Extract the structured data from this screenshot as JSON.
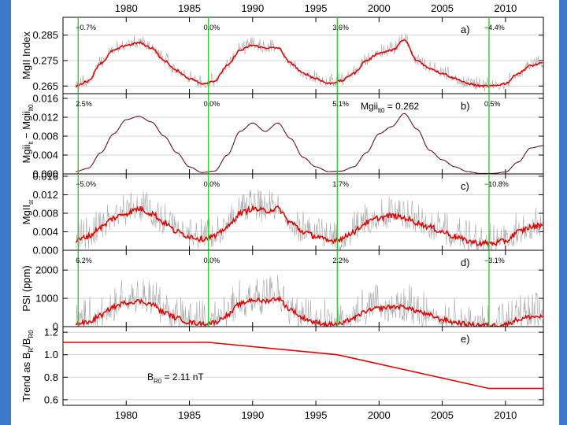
{
  "chart_data": {
    "type": "line",
    "x_axis": {
      "range": [
        1975,
        2013
      ],
      "ticks": [
        1980,
        1985,
        1990,
        1995,
        2000,
        2005,
        2010
      ]
    },
    "min_lines_years": [
      1976.2,
      1986.5,
      1996.7,
      2008.7
    ],
    "colors": {
      "frame_bg": "#3e78c8",
      "plot_bg": "#ffffff",
      "daily": "#a8a8a8",
      "smoothed": "#e00000",
      "model": "#111111",
      "minima": "#33cc33",
      "grid": "#c8c8c8"
    },
    "panels": [
      {
        "id": "a",
        "label": "a)",
        "ylabel_main": "MgII Index",
        "ylabel_sub": "",
        "ylabel_tail": "",
        "ylim": [
          0.262,
          0.292
        ],
        "yticks": [
          0.265,
          0.275,
          0.285
        ],
        "ytick_labels": [
          "0.265",
          "0.275",
          "0.285"
        ],
        "pct_labels": [
          "−0.7%",
          "0.0%",
          "3.6%",
          "−4.4%"
        ],
        "annotation": null,
        "series": [
          {
            "name": "daily",
            "x": [
              1976,
              1977,
              1978,
              1979,
              1980,
              1981,
              1982,
              1983,
              1984,
              1985,
              1986,
              1987,
              1988,
              1989,
              1990,
              1991,
              1992,
              1993,
              1994,
              1995,
              1996,
              1997,
              1998,
              1999,
              2000,
              2001,
              2002,
              2003,
              2004,
              2005,
              2006,
              2007,
              2008,
              2009,
              2010,
              2011,
              2012,
              2013
            ],
            "y": [
              0.265,
              0.267,
              0.274,
              0.279,
              0.281,
              0.282,
              0.28,
              0.275,
              0.271,
              0.268,
              0.266,
              0.267,
              0.273,
              0.279,
              0.281,
              0.28,
              0.28,
              0.274,
              0.27,
              0.268,
              0.266,
              0.267,
              0.27,
              0.275,
              0.278,
              0.279,
              0.283,
              0.275,
              0.272,
              0.27,
              0.268,
              0.266,
              0.265,
              0.265,
              0.266,
              0.27,
              0.273,
              0.274
            ],
            "amp": 0.0035
          },
          {
            "name": "smoothed",
            "x": [
              1976,
              1977,
              1978,
              1979,
              1980,
              1981,
              1982,
              1983,
              1984,
              1985,
              1986,
              1987,
              1988,
              1989,
              1990,
              1991,
              1992,
              1993,
              1994,
              1995,
              1996,
              1997,
              1998,
              1999,
              2000,
              2001,
              2002,
              2003,
              2004,
              2005,
              2006,
              2007,
              2008,
              2009,
              2010,
              2011,
              2012,
              2013
            ],
            "y": [
              0.265,
              0.267,
              0.274,
              0.279,
              0.281,
              0.282,
              0.28,
              0.275,
              0.271,
              0.268,
              0.266,
              0.267,
              0.273,
              0.279,
              0.281,
              0.28,
              0.28,
              0.274,
              0.27,
              0.268,
              0.266,
              0.267,
              0.27,
              0.275,
              0.278,
              0.279,
              0.283,
              0.275,
              0.272,
              0.27,
              0.268,
              0.266,
              0.265,
              0.265,
              0.266,
              0.27,
              0.273,
              0.274
            ],
            "amp": 0.0004
          }
        ]
      },
      {
        "id": "b",
        "label": "b)",
        "ylabel_main": "Mgii",
        "ylabel_sub": "lt",
        "ylabel_tail": " − Mgii",
        "ylabel_sub2": "lt0",
        "ylim": [
          0.0,
          0.017
        ],
        "yticks": [
          0.0,
          0.004,
          0.008,
          0.012,
          0.016
        ],
        "ytick_labels": [
          "0.000",
          "0.004",
          "0.008",
          "0.012",
          "0.016"
        ],
        "pct_labels": [
          "2.5%",
          "0.0%",
          "5.1%",
          "0.5%"
        ],
        "annotation": {
          "text_main": "Mgii",
          "text_sub": "lt0",
          "text_rest": " = 0.262"
        },
        "series": [
          {
            "name": "model",
            "x": [
              1976,
              1977,
              1978,
              1979,
              1980,
              1981,
              1982,
              1983,
              1984,
              1985,
              1986,
              1987,
              1988,
              1989,
              1990,
              1991,
              1992,
              1993,
              1994,
              1995,
              1996,
              1997,
              1998,
              1999,
              2000,
              2001,
              2002,
              2003,
              2004,
              2005,
              2006,
              2007,
              2008,
              2009,
              2010,
              2011,
              2012,
              2013
            ],
            "y": [
              0.0005,
              0.0012,
              0.0045,
              0.0085,
              0.0115,
              0.0122,
              0.011,
              0.008,
              0.0045,
              0.0015,
              0.0003,
              0.0006,
              0.004,
              0.009,
              0.0108,
              0.009,
              0.0108,
              0.0075,
              0.0035,
              0.0015,
              0.0005,
              0.0006,
              0.0015,
              0.0045,
              0.0085,
              0.01,
              0.0128,
              0.0095,
              0.005,
              0.003,
              0.0015,
              0.0005,
              0.0001,
              0.0001,
              0.0004,
              0.0025,
              0.0055,
              0.006
            ],
            "amp": 0.0
          }
        ]
      },
      {
        "id": "c",
        "label": "c)",
        "ylabel_main": "MgII",
        "ylabel_sub": "st",
        "ylabel_tail": "",
        "ylim": [
          0.0,
          0.0165
        ],
        "yticks": [
          0.0,
          0.004,
          0.008,
          0.012,
          0.016
        ],
        "ytick_labels": [
          "0.000",
          "0.004",
          "0.008",
          "0.012",
          "0.016"
        ],
        "pct_labels": [
          "−5.0%",
          "0.0%",
          "1.7%",
          "−10.8%"
        ],
        "annotation": null,
        "series": [
          {
            "name": "daily",
            "x": [
              1976,
              1977,
              1978,
              1979,
              1980,
              1981,
              1982,
              1983,
              1984,
              1985,
              1986,
              1987,
              1988,
              1989,
              1990,
              1991,
              1992,
              1993,
              1994,
              1995,
              1996,
              1997,
              1998,
              1999,
              2000,
              2001,
              2002,
              2003,
              2004,
              2005,
              2006,
              2007,
              2008,
              2009,
              2010,
              2011,
              2012,
              2013
            ],
            "y": [
              0.002,
              0.003,
              0.005,
              0.007,
              0.008,
              0.009,
              0.008,
              0.006,
              0.004,
              0.003,
              0.0025,
              0.003,
              0.005,
              0.008,
              0.009,
              0.0085,
              0.009,
              0.006,
              0.004,
              0.003,
              0.002,
              0.0025,
              0.004,
              0.006,
              0.007,
              0.0075,
              0.007,
              0.006,
              0.005,
              0.004,
              0.003,
              0.002,
              0.0015,
              0.0015,
              0.002,
              0.004,
              0.005,
              0.0055
            ],
            "amp": 0.0045
          },
          {
            "name": "smoothed",
            "x": [
              1976,
              1977,
              1978,
              1979,
              1980,
              1981,
              1982,
              1983,
              1984,
              1985,
              1986,
              1987,
              1988,
              1989,
              1990,
              1991,
              1992,
              1993,
              1994,
              1995,
              1996,
              1997,
              1998,
              1999,
              2000,
              2001,
              2002,
              2003,
              2004,
              2005,
              2006,
              2007,
              2008,
              2009,
              2010,
              2011,
              2012,
              2013
            ],
            "y": [
              0.002,
              0.003,
              0.005,
              0.007,
              0.008,
              0.009,
              0.008,
              0.006,
              0.004,
              0.003,
              0.0025,
              0.003,
              0.005,
              0.008,
              0.009,
              0.0085,
              0.009,
              0.006,
              0.004,
              0.003,
              0.002,
              0.0025,
              0.004,
              0.006,
              0.007,
              0.0075,
              0.007,
              0.006,
              0.005,
              0.004,
              0.003,
              0.002,
              0.0015,
              0.0015,
              0.002,
              0.004,
              0.005,
              0.0055
            ],
            "amp": 0.0006
          }
        ]
      },
      {
        "id": "d",
        "label": "d)",
        "ylabel_main": "PSI (ppm)",
        "ylabel_sub": "",
        "ylabel_tail": "",
        "ylim": [
          0,
          2700
        ],
        "yticks": [
          0,
          1000,
          2000
        ],
        "ytick_labels": [
          "0",
          "1000",
          "2000"
        ],
        "pct_labels": [
          "6.2%",
          "0.0%",
          "2.2%",
          "−3.1%"
        ],
        "annotation": null,
        "series": [
          {
            "name": "daily",
            "x": [
              1976,
              1977,
              1978,
              1979,
              1980,
              1981,
              1982,
              1983,
              1984,
              1985,
              1986,
              1987,
              1988,
              1989,
              1990,
              1991,
              1992,
              1993,
              1994,
              1995,
              1996,
              1997,
              1998,
              1999,
              2000,
              2001,
              2002,
              2003,
              2004,
              2005,
              2006,
              2007,
              2008,
              2009,
              2010,
              2011,
              2012,
              2013
            ],
            "y": [
              100,
              150,
              400,
              700,
              850,
              900,
              800,
              500,
              300,
              150,
              100,
              150,
              400,
              800,
              950,
              900,
              1000,
              600,
              300,
              150,
              80,
              100,
              300,
              550,
              650,
              700,
              700,
              550,
              400,
              250,
              150,
              80,
              60,
              50,
              80,
              250,
              350,
              350
            ],
            "amp": 900
          },
          {
            "name": "smoothed",
            "x": [
              1976,
              1977,
              1978,
              1979,
              1980,
              1981,
              1982,
              1983,
              1984,
              1985,
              1986,
              1987,
              1988,
              1989,
              1990,
              1991,
              1992,
              1993,
              1994,
              1995,
              1996,
              1997,
              1998,
              1999,
              2000,
              2001,
              2002,
              2003,
              2004,
              2005,
              2006,
              2007,
              2008,
              2009,
              2010,
              2011,
              2012,
              2013
            ],
            "y": [
              100,
              150,
              400,
              700,
              850,
              900,
              800,
              500,
              300,
              150,
              100,
              150,
              400,
              800,
              950,
              900,
              1000,
              600,
              300,
              150,
              80,
              100,
              300,
              550,
              650,
              700,
              700,
              550,
              400,
              250,
              150,
              80,
              60,
              50,
              80,
              250,
              350,
              350
            ],
            "amp": 80
          }
        ]
      },
      {
        "id": "e",
        "label": "e)",
        "ylabel_main": "Trend as B",
        "ylabel_sub": "R",
        "ylabel_tail": "/B",
        "ylabel_sub2": "R0",
        "ylim": [
          0.55,
          1.25
        ],
        "yticks": [
          0.6,
          0.8,
          1.0,
          1.2
        ],
        "ytick_labels": [
          "0.6",
          "0.8",
          "1.0",
          "1.2"
        ],
        "pct_labels": [],
        "annotation": {
          "text_main": "B",
          "text_sub": "R0",
          "text_rest": " =  2.11 nT"
        },
        "series": [
          {
            "name": "trend",
            "x": [
              1975,
              1986.5,
              1996.7,
              2008.7,
              2013
            ],
            "y": [
              1.11,
              1.11,
              1.0,
              0.7,
              0.7
            ],
            "amp": 0.0
          }
        ]
      }
    ]
  }
}
